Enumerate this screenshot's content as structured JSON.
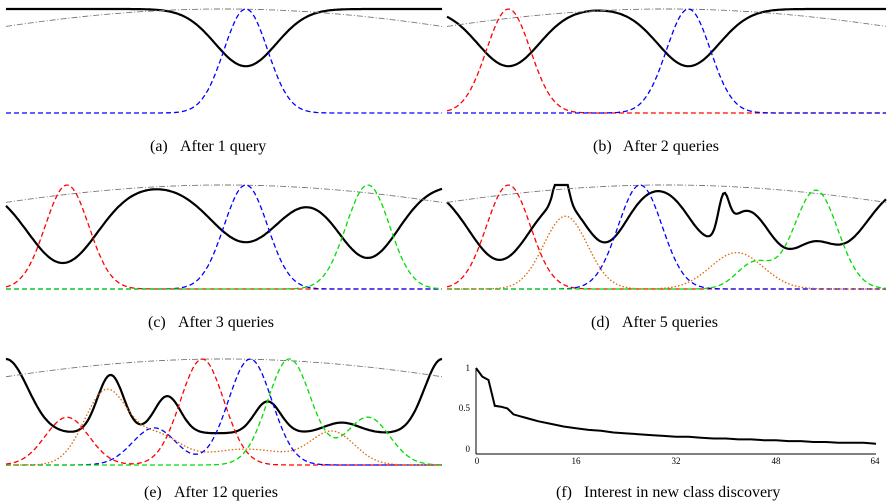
{
  "panels": [
    {
      "label": "(a)",
      "caption": "After 1 query"
    },
    {
      "label": "(b)",
      "caption": "After 2 queries"
    },
    {
      "label": "(c)",
      "caption": "After 3 queries"
    },
    {
      "label": "(d)",
      "caption": "After 5 queries"
    },
    {
      "label": "(e)",
      "caption": "After 12 queries"
    },
    {
      "label": "(f)",
      "caption": "Interest in new class discovery"
    }
  ],
  "chart_data": [
    {
      "type": "line",
      "panel": "a",
      "series": [
        {
          "style": "solid",
          "color": "#000000"
        },
        {
          "style": "dash-dot",
          "color": "#777777"
        },
        {
          "style": "dashed",
          "color": "#0000ff"
        }
      ]
    },
    {
      "type": "line",
      "panel": "b",
      "series": [
        {
          "style": "solid",
          "color": "#000000"
        },
        {
          "style": "dash-dot",
          "color": "#777777"
        },
        {
          "style": "dashed",
          "color": "#ff0000"
        },
        {
          "style": "dashed",
          "color": "#0000ff"
        }
      ]
    },
    {
      "type": "line",
      "panel": "c",
      "series": [
        {
          "style": "solid",
          "color": "#000000"
        },
        {
          "style": "dash-dot",
          "color": "#777777"
        },
        {
          "style": "dashed",
          "color": "#ff0000"
        },
        {
          "style": "dashed",
          "color": "#0000ff"
        },
        {
          "style": "dashed",
          "color": "#00dd00"
        }
      ]
    },
    {
      "type": "line",
      "panel": "d",
      "series": [
        {
          "style": "solid",
          "color": "#000000"
        },
        {
          "style": "dash-dot",
          "color": "#777777"
        },
        {
          "style": "dashed",
          "color": "#ff0000"
        },
        {
          "style": "dashed",
          "color": "#0000ff"
        },
        {
          "style": "dashed",
          "color": "#00dd00"
        },
        {
          "style": "dotted",
          "color": "#dd6600"
        }
      ]
    },
    {
      "type": "line",
      "panel": "e",
      "series": [
        {
          "style": "solid",
          "color": "#000000"
        },
        {
          "style": "dash-dot",
          "color": "#777777"
        },
        {
          "style": "dashed",
          "color": "#ff0000"
        },
        {
          "style": "dashed",
          "color": "#0000ff"
        },
        {
          "style": "dashed",
          "color": "#00dd00"
        },
        {
          "style": "dotted",
          "color": "#dd6600"
        }
      ]
    },
    {
      "type": "line",
      "panel": "f",
      "xlim": [
        0,
        64
      ],
      "ylim": [
        0,
        1
      ],
      "xticks": [
        "0",
        "16",
        "32",
        "48",
        "64"
      ],
      "yticks": [
        "0",
        "0.5",
        "1"
      ],
      "x": [
        0,
        1,
        2,
        3,
        4,
        5,
        6,
        7,
        8,
        9,
        10,
        12,
        14,
        16,
        18,
        20,
        22,
        24,
        26,
        28,
        30,
        32,
        34,
        36,
        38,
        40,
        42,
        44,
        46,
        48,
        50,
        52,
        54,
        56,
        58,
        60,
        62,
        64
      ],
      "y": [
        1.0,
        0.9,
        0.86,
        0.56,
        0.55,
        0.53,
        0.46,
        0.44,
        0.42,
        0.4,
        0.38,
        0.35,
        0.32,
        0.3,
        0.28,
        0.27,
        0.25,
        0.24,
        0.23,
        0.22,
        0.21,
        0.2,
        0.2,
        0.19,
        0.18,
        0.18,
        0.17,
        0.17,
        0.16,
        0.16,
        0.15,
        0.15,
        0.14,
        0.14,
        0.13,
        0.13,
        0.13,
        0.12
      ]
    }
  ]
}
